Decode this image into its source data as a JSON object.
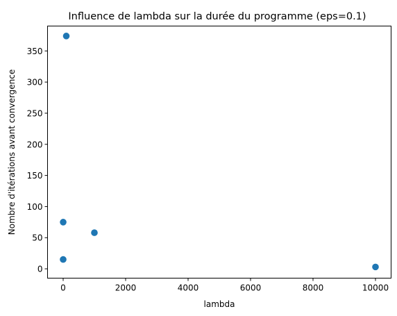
{
  "chart_data": {
    "type": "scatter",
    "title": "Influence de lambda sur la durée du programme (eps=0.1)",
    "xlabel": "lambda",
    "ylabel": "Nombre d'itérations avant convergence",
    "xlim": [
      -500,
      10500
    ],
    "ylim": [
      -15,
      390
    ],
    "xticks": [
      0,
      2000,
      4000,
      6000,
      8000,
      10000
    ],
    "xtick_labels": [
      "0",
      "2000",
      "4000",
      "6000",
      "8000",
      "10000"
    ],
    "yticks": [
      0,
      50,
      100,
      150,
      200,
      250,
      300,
      350
    ],
    "ytick_labels": [
      "0",
      "50",
      "100",
      "150",
      "200",
      "250",
      "300",
      "350"
    ],
    "grid": false,
    "color": "#1f77b4",
    "series": [
      {
        "x": [
          0.1,
          1,
          100,
          1000,
          10000
        ],
        "y": [
          15,
          75,
          374,
          58,
          3
        ]
      }
    ]
  }
}
